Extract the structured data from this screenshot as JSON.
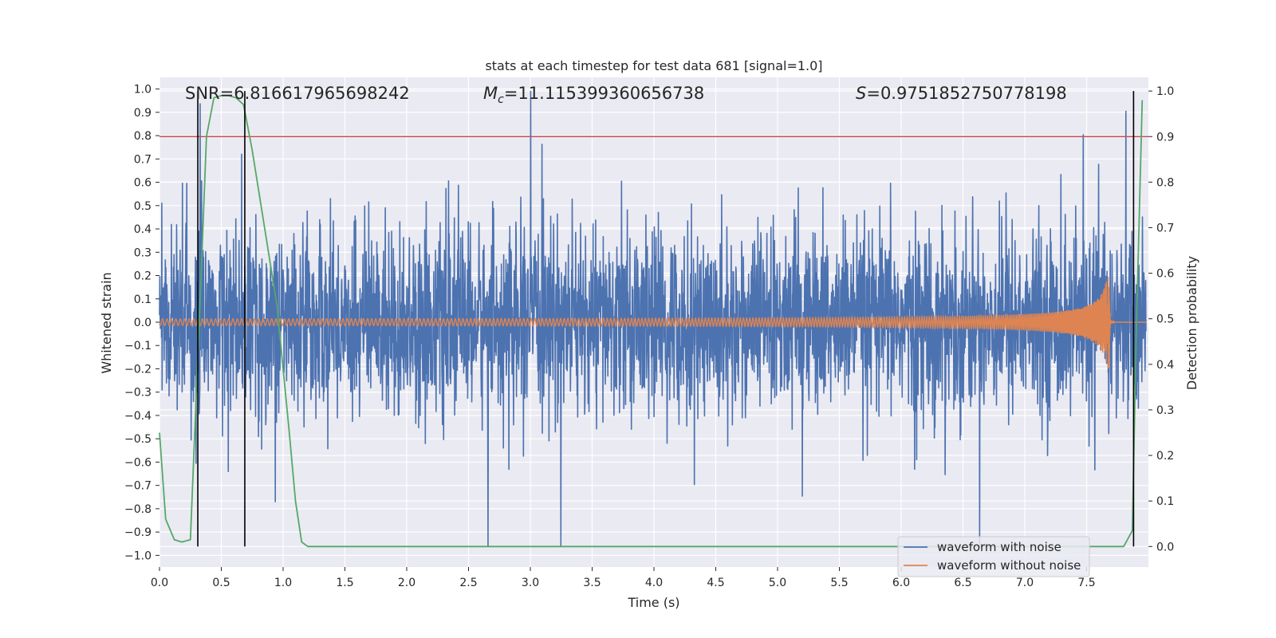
{
  "chart_data": {
    "type": "line",
    "title": "stats at each timestep for test data 681 [signal=1.0]",
    "xlabel": "Time (s)",
    "ylabel_left": "Whitened strain",
    "ylabel_right": "Detection probability",
    "xlim": [
      0.0,
      8.0
    ],
    "ylim_left": [
      -1.05,
      1.05
    ],
    "ylim_right": [
      -0.045,
      1.03
    ],
    "x_ticks": [
      0.0,
      0.5,
      1.0,
      1.5,
      2.0,
      2.5,
      3.0,
      3.5,
      4.0,
      4.5,
      5.0,
      5.5,
      6.0,
      6.5,
      7.0,
      7.5
    ],
    "x_tick_labels": [
      "0.0",
      "0.5",
      "1.0",
      "1.5",
      "2.0",
      "2.5",
      "3.0",
      "3.5",
      "4.0",
      "4.5",
      "5.0",
      "5.5",
      "6.0",
      "6.5",
      "7.0",
      "7.5"
    ],
    "y_left_ticks": [
      1.0,
      0.9,
      0.8,
      0.7,
      0.6,
      0.5,
      0.4,
      0.3,
      0.2,
      0.1,
      0.0,
      -0.1,
      -0.2,
      -0.3,
      -0.4,
      -0.5,
      -0.6,
      -0.7,
      -0.8,
      -0.9,
      -1.0
    ],
    "y_left_tick_labels": [
      "1.0",
      "0.9",
      "0.8",
      "0.7",
      "0.6",
      "0.5",
      "0.4",
      "0.3",
      "0.2",
      "0.1",
      "0.0",
      "−0.1",
      "−0.2",
      "−0.3",
      "−0.4",
      "−0.5",
      "−0.6",
      "−0.7",
      "−0.8",
      "−0.9",
      "−1.0"
    ],
    "y_right_ticks": [
      1.0,
      0.9,
      0.8,
      0.7,
      0.6,
      0.5,
      0.4,
      0.3,
      0.2,
      0.1,
      0.0
    ],
    "y_right_tick_labels": [
      "1.0",
      "0.9",
      "0.8",
      "0.7",
      "0.6",
      "0.5",
      "0.4",
      "0.3",
      "0.2",
      "0.1",
      "0.0"
    ],
    "grid": true,
    "legend_position": "bottom-right",
    "annotations": {
      "snr_text": "SNR=6.816617965698242",
      "mc_symbol": "M",
      "mc_subscript": "c",
      "mc_value": "=11.115399360656738",
      "s_symbol": "S",
      "s_value": "=0.9751852750778198"
    },
    "series": [
      {
        "name": "waveform with noise",
        "color": "#4c72b0",
        "description_values": "whitened noisy strain, roughly within -0.5 to 0.6 with peaks up to ~1.0 and down to ~-0.95"
      },
      {
        "name": "waveform without noise",
        "color": "#dd8452",
        "chirp": {
          "start_time": 0.0,
          "merger_time": 7.68,
          "amp_start": 0.01,
          "amp_peak": 0.31,
          "amp_trough": -0.23
        }
      },
      {
        "color": "#55a868",
        "axis": "right",
        "x": [
          0.0,
          0.05,
          0.12,
          0.18,
          0.25,
          0.3,
          0.33,
          0.38,
          0.44,
          0.5,
          0.56,
          0.62,
          0.68,
          0.75,
          0.85,
          0.95,
          1.05,
          1.1,
          1.15,
          1.2,
          1.3,
          1.5,
          2.0,
          3.0,
          4.0,
          5.0,
          6.0,
          7.0,
          7.5,
          7.8,
          7.87,
          7.9,
          7.95
        ],
        "y": [
          0.25,
          0.06,
          0.015,
          0.01,
          0.015,
          0.35,
          0.55,
          0.9,
          0.985,
          0.99,
          0.99,
          0.985,
          0.97,
          0.87,
          0.7,
          0.53,
          0.25,
          0.1,
          0.01,
          0.0,
          0.0,
          0.0,
          0.0,
          0.0,
          0.0,
          0.0,
          0.0,
          0.0,
          0.0,
          0.0,
          0.035,
          0.45,
          0.98
        ]
      }
    ],
    "threshold_line": {
      "color": "#c44e52",
      "value_right_axis": 0.9
    },
    "vertical_lines": [
      0.31,
      0.69,
      7.88
    ]
  }
}
